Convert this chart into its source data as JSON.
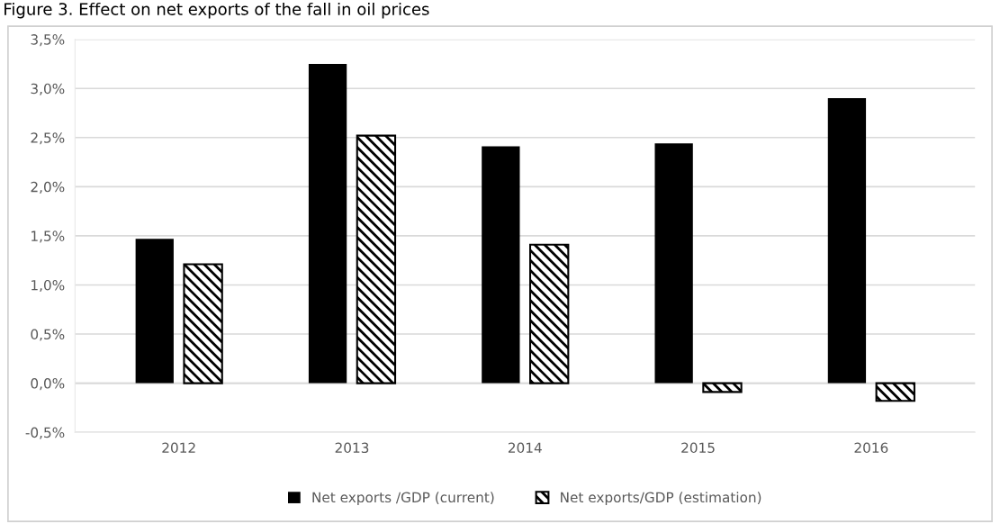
{
  "chart_data": {
    "type": "bar",
    "title": "Figure 3. Effect on net exports of the fall in oil prices",
    "categories": [
      "2012",
      "2013",
      "2014",
      "2015",
      "2016"
    ],
    "series": [
      {
        "name": "Net exports /GDP (current)",
        "color": "#000000",
        "values": [
          1.47,
          3.25,
          2.41,
          2.44,
          2.9
        ]
      },
      {
        "name": "Net exports/GDP (estimation)",
        "color": "#000000",
        "values": [
          1.21,
          2.52,
          1.41,
          -0.09,
          -0.18
        ]
      }
    ],
    "ylim": [
      -0.5,
      3.5
    ],
    "yticks": [
      {
        "value": -0.5,
        "label": "-0,5%"
      },
      {
        "value": 0,
        "label": "0,0%"
      },
      {
        "value": 0.5,
        "label": "0,5%"
      },
      {
        "value": 1,
        "label": "1,0%"
      },
      {
        "value": 1.5,
        "label": "1,5%"
      },
      {
        "value": 2,
        "label": "2,0%"
      },
      {
        "value": 2.5,
        "label": "2,5%"
      },
      {
        "value": 3,
        "label": "3,0%"
      },
      {
        "value": 3.5,
        "label": "3,5%"
      }
    ],
    "grid": "y",
    "legend": "bottom"
  }
}
